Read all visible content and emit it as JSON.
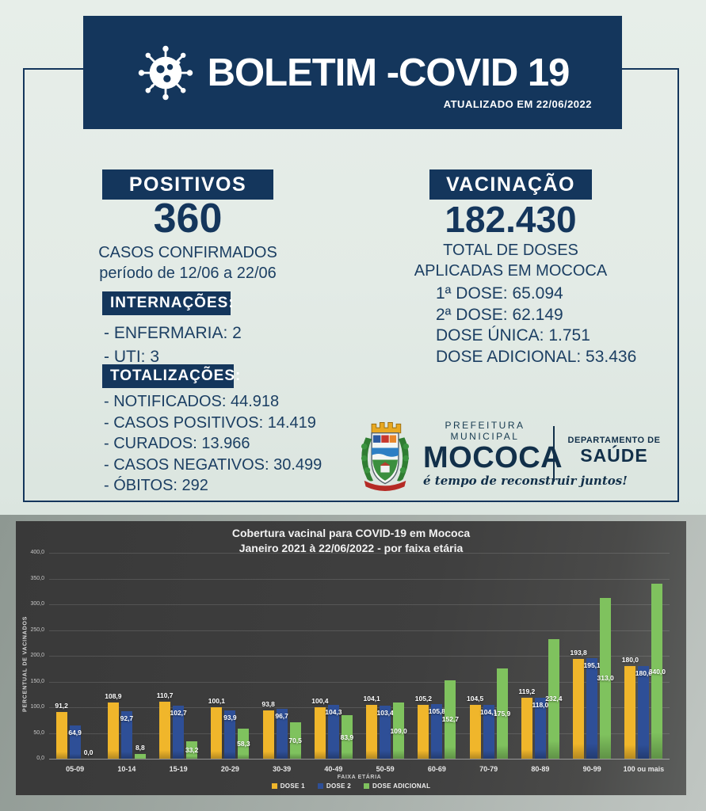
{
  "header": {
    "title": "BOLETIM -COVID 19",
    "updated_label": "ATUALIZADO EM 22/06/2022"
  },
  "positivos": {
    "title": "POSITIVOS",
    "value": "360",
    "subtitle1": "CASOS CONFIRMADOS",
    "subtitle2": "período de 12/06 a 22/06"
  },
  "internacoes": {
    "title": "INTERNAÇÕES:",
    "items": [
      "- ENFERMARIA: 2",
      "- UTI: 3"
    ]
  },
  "totalizacoes": {
    "title": "TOTALIZAÇÕES:",
    "items": [
      "- NOTIFICADOS: 44.918",
      "- CASOS POSITIVOS: 14.419",
      "- CURADOS: 13.966",
      "- CASOS NEGATIVOS: 30.499",
      "- ÓBITOS: 292"
    ]
  },
  "vacinacao": {
    "title": "VACINAÇÃO",
    "value": "182.430",
    "subtitle1": "TOTAL DE DOSES",
    "subtitle2": "APLICADAS EM MOCOCA",
    "doses": [
      "1ª DOSE: 65.094",
      "2ª DOSE: 62.149",
      "DOSE ÚNICA: 1.751",
      "DOSE ADICIONAL: 53.436"
    ]
  },
  "logo": {
    "pretitle": "PREFEITURA MUNICIPAL",
    "name": "MOCOCA",
    "tagline": "é tempo de reconstruir juntos!",
    "dept_line1": "DEPARTAMENTO DE",
    "dept_line2": "SAÚDE"
  },
  "colors": {
    "navy": "#14365c",
    "page_bg": "#e3ebe6",
    "chart_bg": "#3f3f3f",
    "dose1": "#f0b62b",
    "dose2": "#2e4f97",
    "dose_adicional": "#7fc25e"
  },
  "chart_data": {
    "type": "bar",
    "title": "Cobertura vacinal para COVID-19 em Mococa",
    "subtitle": "Janeiro 2021 à 22/06/2022 - por faixa etária",
    "xlabel": "FAIXA ETÁRIA",
    "ylabel": "PERCENTUAL DE VACINADOS",
    "ylim": [
      0,
      400
    ],
    "ytick_step": 50,
    "grid": true,
    "legend_position": "bottom",
    "categories": [
      "05-09",
      "10-14",
      "15-19",
      "20-29",
      "30-39",
      "40-49",
      "50-59",
      "60-69",
      "70-79",
      "80-89",
      "90-99",
      "100 ou mais"
    ],
    "series": [
      {
        "name": "DOSE 1",
        "color": "#f0b62b",
        "values": [
          91.2,
          108.9,
          110.7,
          100.1,
          93.8,
          100.4,
          104.1,
          105.2,
          104.5,
          119.2,
          193.8,
          180.0
        ]
      },
      {
        "name": "DOSE 2",
        "color": "#2e4f97",
        "values": [
          64.9,
          92.7,
          102.7,
          93.9,
          96.7,
          104.3,
          103.4,
          105.8,
          104.1,
          118.0,
          195.1,
          180.0
        ]
      },
      {
        "name": "DOSE ADICIONAL",
        "color": "#7fc25e",
        "values": [
          0.0,
          8.8,
          33.2,
          58.3,
          70.5,
          83.9,
          109.0,
          152.7,
          175.9,
          232.4,
          313.0,
          340.0
        ]
      }
    ]
  }
}
